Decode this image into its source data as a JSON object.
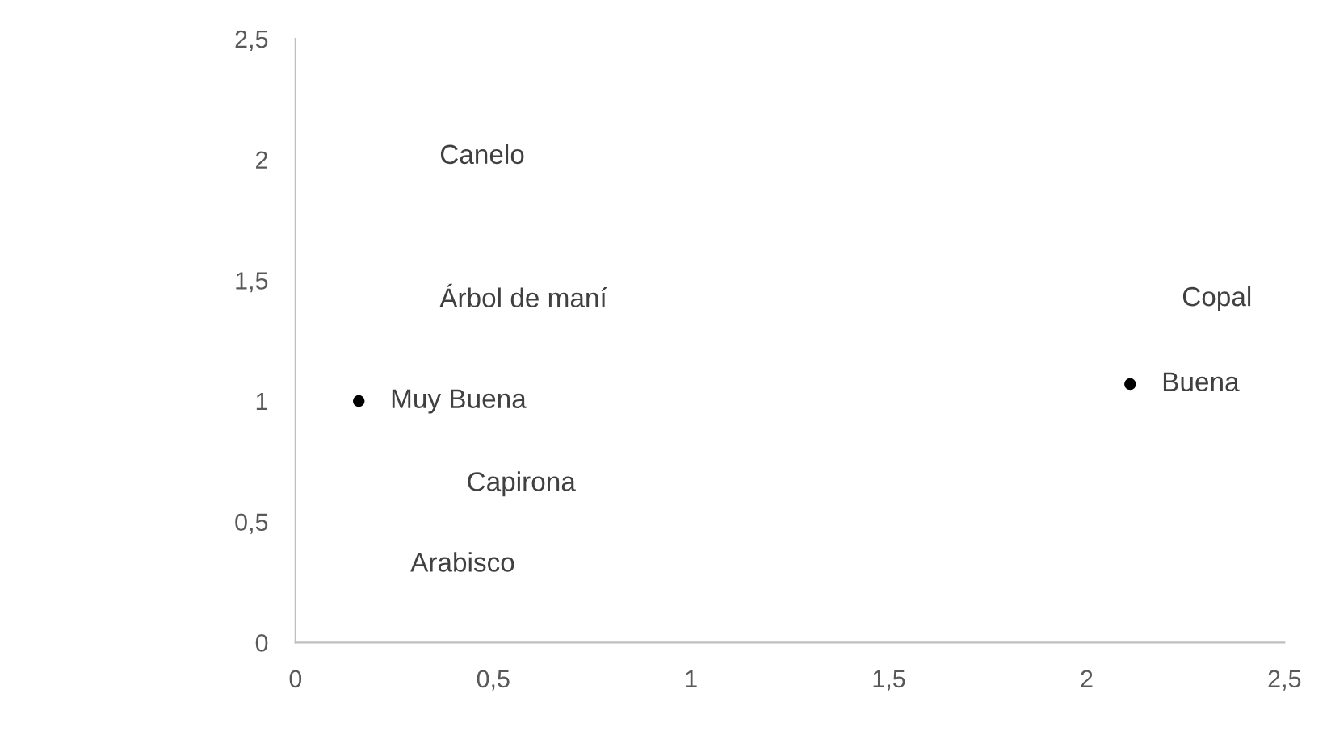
{
  "chart_data": {
    "type": "scatter",
    "x": [
      0.16,
      2.11
    ],
    "series": [
      {
        "color": "#000000",
        "values": [
          1.0,
          1.07
        ],
        "value_labels": [
          "Muy Buena",
          "Buena"
        ]
      }
    ],
    "annotations": [
      "Canelo",
      "Árbol de maní",
      "Capirona",
      "Arabisco",
      "Copal"
    ],
    "xlim": [
      0,
      2.5
    ],
    "ylim": [
      0,
      2.5
    ],
    "xticks": [
      0,
      {
        "value": 0.5,
        "label": "0,5"
      },
      1,
      {
        "value": 1.5,
        "label": "1,5"
      },
      2,
      {
        "value": 2.5,
        "label": "2,5"
      }
    ],
    "yticks": [
      0,
      {
        "value": 0.5,
        "label": "0,5"
      },
      1,
      {
        "value": 1.5,
        "label": "1,5"
      },
      2,
      {
        "value": 2.5,
        "label": "2,5"
      }
    ],
    "grid": false,
    "legend": false,
    "marker": "circle"
  }
}
